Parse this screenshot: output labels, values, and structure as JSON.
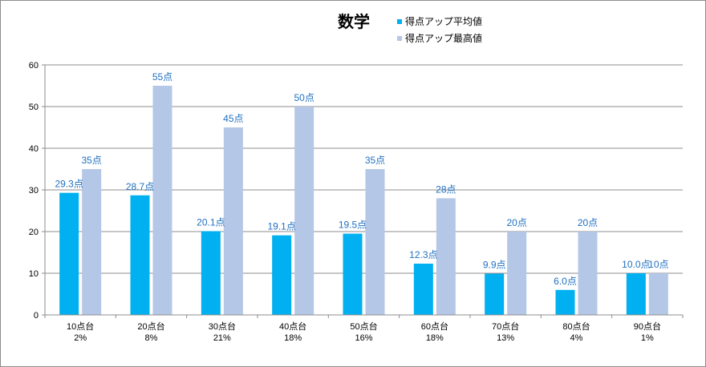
{
  "chart_data": {
    "type": "bar",
    "title": "数学",
    "xlabel": "",
    "ylabel": "",
    "ylim": [
      0,
      60
    ],
    "yticks": [
      0,
      10,
      20,
      30,
      40,
      50,
      60
    ],
    "grid": true,
    "legend_position": "top",
    "categories": [
      [
        "10点台",
        "2%"
      ],
      [
        "20点台",
        "8%"
      ],
      [
        "30点台",
        "21%"
      ],
      [
        "40点台",
        "18%"
      ],
      [
        "50点台",
        "16%"
      ],
      [
        "60点台",
        "18%"
      ],
      [
        "70点台",
        "13%"
      ],
      [
        "80点台",
        "4%"
      ],
      [
        "90点台",
        "1%"
      ]
    ],
    "series": [
      {
        "name": "得点アップ平均値",
        "color": "#00b0f0",
        "values": [
          29.3,
          28.7,
          20.1,
          19.1,
          19.5,
          12.3,
          9.9,
          6.0,
          10.0
        ],
        "labels": [
          "29.3点",
          "28.7点",
          "20.1点",
          "19.1点",
          "19.5点",
          "12.3点",
          "9.9点",
          "6.0点",
          "10.0点"
        ]
      },
      {
        "name": "得点アップ最高値",
        "color": "#b4c7e7",
        "values": [
          35,
          55,
          45,
          50,
          35,
          28,
          20,
          20,
          10
        ],
        "labels": [
          "35点",
          "55点",
          "45点",
          "50点",
          "35点",
          "28点",
          "20点",
          "20点",
          "10点"
        ]
      }
    ]
  }
}
